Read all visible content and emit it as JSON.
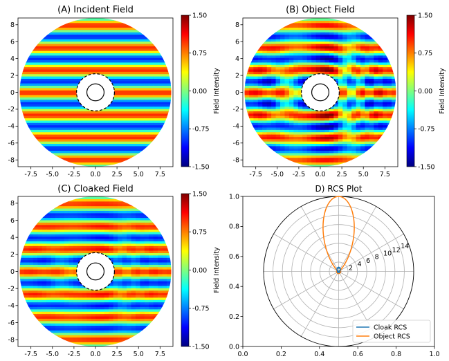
{
  "figure": {
    "panels": [
      {
        "title": "(A) Incident Field"
      },
      {
        "title": "(B) Object Field"
      },
      {
        "title": "(C) Cloaked Field"
      }
    ],
    "polar_title": "D) RCS Plot",
    "colorbar_label": "Field Intensity",
    "colorbar_ticks": [
      "1.50",
      "0.75",
      "0.00",
      "-0.75",
      "-1.50"
    ],
    "colormap": [
      "#00007f",
      "#0000ff",
      "#007fff",
      "#00ffff",
      "#7fff7f",
      "#ffff00",
      "#ff7f00",
      "#ff0000",
      "#7f0000"
    ],
    "legend": [
      {
        "label": "Cloak RCS",
        "color": "#1f77b4"
      },
      {
        "label": "Object RCS",
        "color": "#ff7f0e"
      }
    ]
  },
  "chart_data": [
    {
      "type": "heatmap",
      "title": "(A) Incident Field",
      "xlim": [
        -9,
        9
      ],
      "ylim": [
        -8.8,
        8.8
      ],
      "x_ticks": [
        -7.5,
        -5.0,
        -2.5,
        0.0,
        2.5,
        5.0,
        7.5
      ],
      "y_ticks": [
        -8,
        -6,
        -4,
        -2,
        0,
        2,
        4,
        6,
        8
      ],
      "x_tick_labels": [
        "-7.5",
        "-5.0",
        "-2.5",
        "0.0",
        "2.5",
        "5.0",
        "7.5"
      ],
      "y_tick_labels": [
        "-8",
        "-6",
        "-4",
        "-2",
        "0",
        "2",
        "4",
        "6",
        "8"
      ],
      "domain_radius": 8.8,
      "cloak_outer_radius": 2.2,
      "object_radius": 1.0,
      "wave_period": 2.65,
      "perturbation": 0.0,
      "color_range": [
        -1.5,
        1.5
      ]
    },
    {
      "type": "heatmap",
      "title": "(B) Object Field",
      "xlim": [
        -9,
        9
      ],
      "ylim": [
        -8.8,
        8.8
      ],
      "x_ticks": [
        -7.5,
        -5.0,
        -2.5,
        0.0,
        2.5,
        5.0,
        7.5
      ],
      "y_ticks": [
        -8,
        -6,
        -4,
        -2,
        0,
        2,
        4,
        6,
        8
      ],
      "x_tick_labels": [
        "-7.5",
        "-5.0",
        "-2.5",
        "0.0",
        "2.5",
        "5.0",
        "7.5"
      ],
      "y_tick_labels": [
        "-8",
        "-6",
        "-4",
        "-2",
        "0",
        "2",
        "4",
        "6",
        "8"
      ],
      "domain_radius": 8.8,
      "cloak_outer_radius": 2.2,
      "object_radius": 1.0,
      "wave_period": 2.65,
      "perturbation": 1.0,
      "color_range": [
        -1.5,
        1.5
      ]
    },
    {
      "type": "heatmap",
      "title": "(C) Cloaked Field",
      "xlim": [
        -9,
        9
      ],
      "ylim": [
        -8.8,
        8.8
      ],
      "x_ticks": [
        -7.5,
        -5.0,
        -2.5,
        0.0,
        2.5,
        5.0,
        7.5
      ],
      "y_ticks": [
        -8,
        -6,
        -4,
        -2,
        0,
        2,
        4,
        6,
        8
      ],
      "x_tick_labels": [
        "-7.5",
        "-5.0",
        "-2.5",
        "0.0",
        "2.5",
        "5.0",
        "7.5"
      ],
      "y_tick_labels": [
        "-8",
        "-6",
        "-4",
        "-2",
        "0",
        "2",
        "4",
        "6",
        "8"
      ],
      "domain_radius": 8.8,
      "cloak_outer_radius": 2.2,
      "object_radius": 1.0,
      "wave_period": 2.65,
      "perturbation": 0.3,
      "color_range": [
        -1.5,
        1.5
      ]
    },
    {
      "type": "line",
      "subtype": "polar",
      "title": "D) RCS Plot",
      "cartesian_xlim": [
        0.0,
        1.0
      ],
      "cartesian_ylim": [
        0.0,
        1.0
      ],
      "cartesian_x_tick_labels": [
        "0.0",
        "0.2",
        "0.4",
        "0.6",
        "0.8",
        "1.0"
      ],
      "cartesian_y_tick_labels": [
        "0.0",
        "0.2",
        "0.4",
        "0.6",
        "0.8",
        "1.0"
      ],
      "r_max": 16,
      "r_ticks": [
        2,
        4,
        6,
        8,
        10,
        12,
        14
      ],
      "r_tick_labels": [
        "2",
        "4",
        "6",
        "8",
        "10",
        "12",
        "14"
      ],
      "angular_grid_deg": [
        0,
        30,
        60,
        90,
        120,
        150,
        180,
        210,
        240,
        270,
        300,
        330
      ],
      "legend_position": "lower-right",
      "series": [
        {
          "name": "Object RCS",
          "color": "#ff7f0e",
          "peak_r": 16,
          "peak_angle_deg": 90,
          "lobe_exponent": 8
        },
        {
          "name": "Cloak RCS",
          "color": "#1f77b4",
          "peak_r": 0.9,
          "peak_angle_deg": 90,
          "lobe_exponent": 2
        }
      ]
    }
  ]
}
